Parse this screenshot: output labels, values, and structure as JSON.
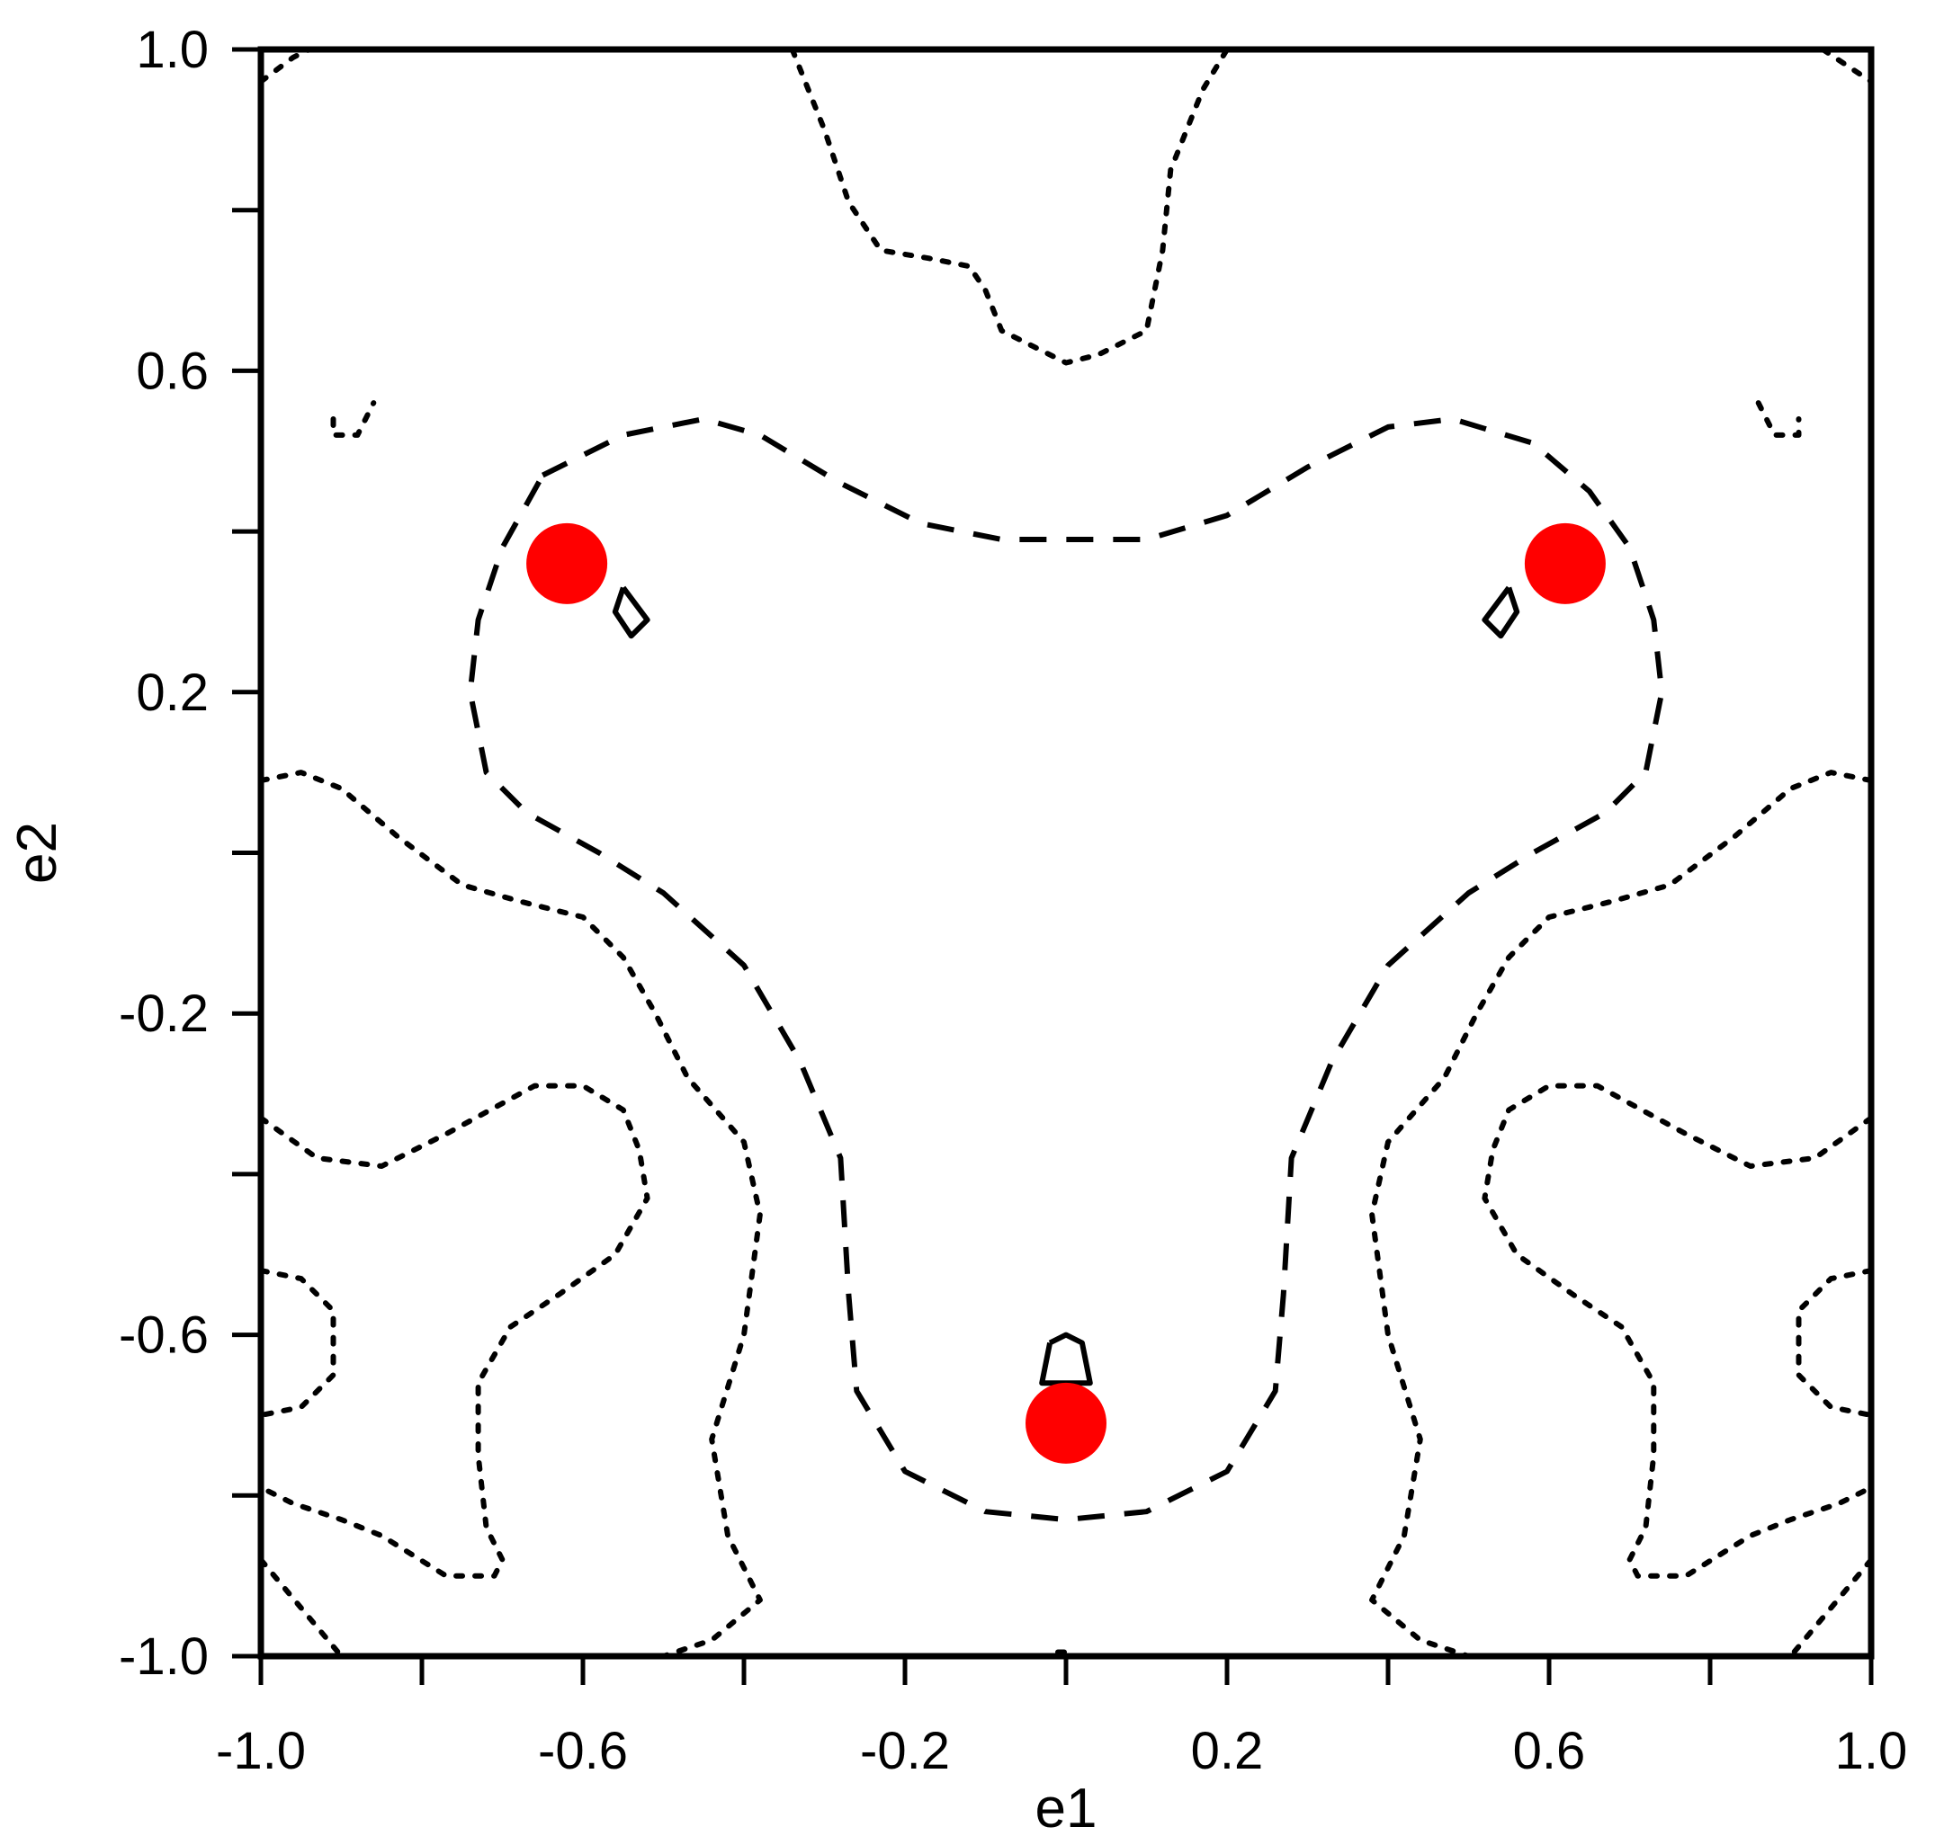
{
  "chart_data": {
    "type": "contour",
    "title": "",
    "xlabel": "e1",
    "ylabel": "e2",
    "xlim": [
      -1.0,
      1.0
    ],
    "ylim": [
      -1.0,
      1.0
    ],
    "xticks": [
      -1.0,
      -0.8,
      -0.6,
      -0.4,
      -0.2,
      0.0,
      0.2,
      0.4,
      0.6,
      0.8,
      1.0
    ],
    "yticks": [
      -1.0,
      -0.8,
      -0.6,
      -0.4,
      -0.2,
      0.0,
      0.2,
      0.4,
      0.6,
      0.8,
      1.0
    ],
    "xtick_labels": [
      {
        "value": -1.0,
        "label": "-1.0"
      },
      {
        "value": -0.6,
        "label": "-0.6"
      },
      {
        "value": -0.2,
        "label": "-0.2"
      },
      {
        "value": 0.2,
        "label": "0.2"
      },
      {
        "value": 0.6,
        "label": "0.6"
      },
      {
        "value": 1.0,
        "label": "1.0"
      }
    ],
    "ytick_labels": [
      {
        "value": 1.0,
        "label": "1.0"
      },
      {
        "value": 0.6,
        "label": "0.6"
      },
      {
        "value": 0.2,
        "label": "0.2"
      },
      {
        "value": -0.2,
        "label": "-0.2"
      },
      {
        "value": -0.6,
        "label": "-0.6"
      },
      {
        "value": -1.0,
        "label": "-1.0"
      }
    ],
    "grid": false,
    "legend": "none",
    "contours": [
      {
        "style": "dotted",
        "points": [
          [
            -0.34,
            1.0
          ],
          [
            -0.3,
            0.9
          ],
          [
            -0.27,
            0.81
          ],
          [
            -0.23,
            0.75
          ],
          [
            -0.17,
            0.74
          ],
          [
            -0.12,
            0.73
          ],
          [
            -0.1,
            0.7
          ],
          [
            -0.08,
            0.65
          ],
          [
            -0.04,
            0.63
          ],
          [
            0.0,
            0.61
          ],
          [
            0.04,
            0.62
          ],
          [
            0.1,
            0.65
          ],
          [
            0.12,
            0.75
          ],
          [
            0.13,
            0.85
          ],
          [
            0.17,
            0.95
          ],
          [
            0.2,
            1.0
          ]
        ]
      },
      {
        "style": "dotted",
        "points": [
          [
            -1.0,
            0.96
          ],
          [
            -0.96,
            0.99
          ],
          [
            -0.94,
            1.0
          ]
        ]
      },
      {
        "style": "dotted",
        "points": [
          [
            0.94,
            1.0
          ],
          [
            0.97,
            0.98
          ],
          [
            1.0,
            0.96
          ]
        ]
      },
      {
        "style": "dotted",
        "points": [
          [
            -1.0,
            0.09
          ],
          [
            -0.95,
            0.1
          ],
          [
            -0.9,
            0.08
          ],
          [
            -0.83,
            0.02
          ],
          [
            -0.75,
            -0.04
          ],
          [
            -0.68,
            -0.06
          ],
          [
            -0.6,
            -0.08
          ],
          [
            -0.55,
            -0.13
          ],
          [
            -0.51,
            -0.2
          ],
          [
            -0.47,
            -0.28
          ],
          [
            -0.4,
            -0.36
          ],
          [
            -0.38,
            -0.45
          ],
          [
            -0.4,
            -0.6
          ],
          [
            -0.44,
            -0.73
          ],
          [
            -0.42,
            -0.85
          ],
          [
            -0.38,
            -0.93
          ],
          [
            -0.44,
            -0.98
          ],
          [
            -0.5,
            -1.0
          ]
        ]
      },
      {
        "style": "dotted",
        "points": [
          [
            1.0,
            0.09
          ],
          [
            0.95,
            0.1
          ],
          [
            0.9,
            0.08
          ],
          [
            0.83,
            0.02
          ],
          [
            0.75,
            -0.04
          ],
          [
            0.68,
            -0.06
          ],
          [
            0.6,
            -0.08
          ],
          [
            0.55,
            -0.13
          ],
          [
            0.51,
            -0.2
          ],
          [
            0.47,
            -0.28
          ],
          [
            0.4,
            -0.36
          ],
          [
            0.38,
            -0.45
          ],
          [
            0.4,
            -0.6
          ],
          [
            0.44,
            -0.73
          ],
          [
            0.42,
            -0.85
          ],
          [
            0.38,
            -0.93
          ],
          [
            0.44,
            -0.98
          ],
          [
            0.5,
            -1.0
          ]
        ]
      },
      {
        "style": "dotted",
        "points": [
          [
            -1.0,
            -0.33
          ],
          [
            -0.93,
            -0.38
          ],
          [
            -0.85,
            -0.39
          ],
          [
            -0.77,
            -0.35
          ],
          [
            -0.66,
            -0.29
          ],
          [
            -0.6,
            -0.29
          ],
          [
            -0.55,
            -0.32
          ],
          [
            -0.53,
            -0.37
          ],
          [
            -0.52,
            -0.43
          ],
          [
            -0.56,
            -0.5
          ],
          [
            -0.63,
            -0.55
          ],
          [
            -0.69,
            -0.59
          ],
          [
            -0.73,
            -0.66
          ],
          [
            -0.73,
            -0.75
          ],
          [
            -0.72,
            -0.84
          ],
          [
            -0.7,
            -0.88
          ],
          [
            -0.71,
            -0.9
          ],
          [
            -0.77,
            -0.9
          ],
          [
            -0.85,
            -0.85
          ],
          [
            -0.9,
            -0.83
          ],
          [
            -0.96,
            -0.81
          ],
          [
            -1.0,
            -0.79
          ]
        ]
      },
      {
        "style": "dotted",
        "points": [
          [
            1.0,
            -0.33
          ],
          [
            0.93,
            -0.38
          ],
          [
            0.85,
            -0.39
          ],
          [
            0.77,
            -0.35
          ],
          [
            0.66,
            -0.29
          ],
          [
            0.6,
            -0.29
          ],
          [
            0.55,
            -0.32
          ],
          [
            0.53,
            -0.37
          ],
          [
            0.52,
            -0.43
          ],
          [
            0.56,
            -0.5
          ],
          [
            0.63,
            -0.55
          ],
          [
            0.69,
            -0.59
          ],
          [
            0.73,
            -0.66
          ],
          [
            0.73,
            -0.75
          ],
          [
            0.72,
            -0.84
          ],
          [
            0.7,
            -0.88
          ],
          [
            0.71,
            -0.9
          ],
          [
            0.77,
            -0.9
          ],
          [
            0.85,
            -0.85
          ],
          [
            0.9,
            -0.83
          ],
          [
            0.96,
            -0.81
          ],
          [
            1.0,
            -0.79
          ]
        ]
      },
      {
        "style": "dotted",
        "points": [
          [
            -1.0,
            -0.52
          ],
          [
            -0.95,
            -0.53
          ],
          [
            -0.91,
            -0.57
          ],
          [
            -0.91,
            -0.65
          ],
          [
            -0.95,
            -0.69
          ],
          [
            -1.0,
            -0.7
          ]
        ]
      },
      {
        "style": "dotted",
        "points": [
          [
            1.0,
            -0.52
          ],
          [
            0.95,
            -0.53
          ],
          [
            0.91,
            -0.57
          ],
          [
            0.91,
            -0.65
          ],
          [
            0.95,
            -0.69
          ],
          [
            1.0,
            -0.7
          ]
        ]
      },
      {
        "style": "dotted",
        "points": [
          [
            -1.0,
            -0.88
          ],
          [
            -0.95,
            -0.94
          ],
          [
            -0.9,
            -1.0
          ]
        ]
      },
      {
        "style": "dotted",
        "points": [
          [
            1.0,
            -0.88
          ],
          [
            0.95,
            -0.94
          ],
          [
            0.9,
            -1.0
          ]
        ]
      },
      {
        "style": "dotted",
        "points": [
          [
            -0.01,
            -0.995
          ],
          [
            0.01,
            -0.995
          ]
        ]
      },
      {
        "style": "dotted",
        "points": [
          [
            -0.91,
            0.54
          ],
          [
            -0.91,
            0.52
          ],
          [
            -0.88,
            0.52
          ],
          [
            -0.86,
            0.56
          ]
        ]
      },
      {
        "style": "dotted",
        "points": [
          [
            0.86,
            0.56
          ],
          [
            0.88,
            0.52
          ],
          [
            0.91,
            0.52
          ],
          [
            0.91,
            0.54
          ]
        ]
      },
      {
        "style": "dashed",
        "points": [
          [
            -0.65,
            0.47
          ],
          [
            -0.55,
            0.52
          ],
          [
            -0.45,
            0.54
          ],
          [
            -0.38,
            0.52
          ],
          [
            -0.28,
            0.46
          ],
          [
            -0.18,
            0.41
          ],
          [
            -0.08,
            0.39
          ],
          [
            0.0,
            0.39
          ],
          [
            0.1,
            0.39
          ],
          [
            0.2,
            0.42
          ],
          [
            0.3,
            0.48
          ],
          [
            0.4,
            0.53
          ],
          [
            0.48,
            0.54
          ],
          [
            0.58,
            0.51
          ],
          [
            0.65,
            0.45
          ],
          [
            0.7,
            0.38
          ],
          [
            0.73,
            0.29
          ],
          [
            0.74,
            0.2
          ],
          [
            0.72,
            0.1
          ],
          [
            0.67,
            0.05
          ],
          [
            0.58,
            0.0
          ],
          [
            0.5,
            -0.05
          ],
          [
            0.4,
            -0.14
          ],
          [
            0.33,
            -0.26
          ],
          [
            0.28,
            -0.38
          ],
          [
            0.27,
            -0.55
          ],
          [
            0.26,
            -0.67
          ],
          [
            0.2,
            -0.77
          ],
          [
            0.1,
            -0.82
          ],
          [
            0.0,
            -0.83
          ],
          [
            -0.1,
            -0.82
          ],
          [
            -0.2,
            -0.77
          ],
          [
            -0.26,
            -0.67
          ],
          [
            -0.27,
            -0.55
          ],
          [
            -0.28,
            -0.38
          ],
          [
            -0.33,
            -0.26
          ],
          [
            -0.4,
            -0.14
          ],
          [
            -0.5,
            -0.05
          ],
          [
            -0.58,
            0.0
          ],
          [
            -0.67,
            0.05
          ],
          [
            -0.72,
            0.1
          ],
          [
            -0.74,
            0.2
          ],
          [
            -0.73,
            0.29
          ],
          [
            -0.7,
            0.38
          ],
          [
            -0.65,
            0.47
          ]
        ]
      },
      {
        "style": "solid",
        "points": [
          [
            -0.55,
            0.33
          ],
          [
            -0.52,
            0.29
          ],
          [
            -0.54,
            0.27
          ],
          [
            -0.56,
            0.3
          ],
          [
            -0.55,
            0.33
          ]
        ]
      },
      {
        "style": "solid",
        "points": [
          [
            0.55,
            0.33
          ],
          [
            0.52,
            0.29
          ],
          [
            0.54,
            0.27
          ],
          [
            0.56,
            0.3
          ],
          [
            0.55,
            0.33
          ]
        ]
      },
      {
        "style": "solid",
        "points": [
          [
            -0.02,
            -0.61
          ],
          [
            0.0,
            -0.6
          ],
          [
            0.02,
            -0.61
          ],
          [
            0.03,
            -0.66
          ],
          [
            -0.03,
            -0.66
          ],
          [
            -0.02,
            -0.61
          ]
        ]
      }
    ],
    "markers": [
      {
        "x": -0.62,
        "y": 0.36,
        "color": "#ff0000"
      },
      {
        "x": 0.62,
        "y": 0.36,
        "color": "#ff0000"
      },
      {
        "x": 0.0,
        "y": -0.71,
        "color": "#ff0000"
      }
    ]
  }
}
